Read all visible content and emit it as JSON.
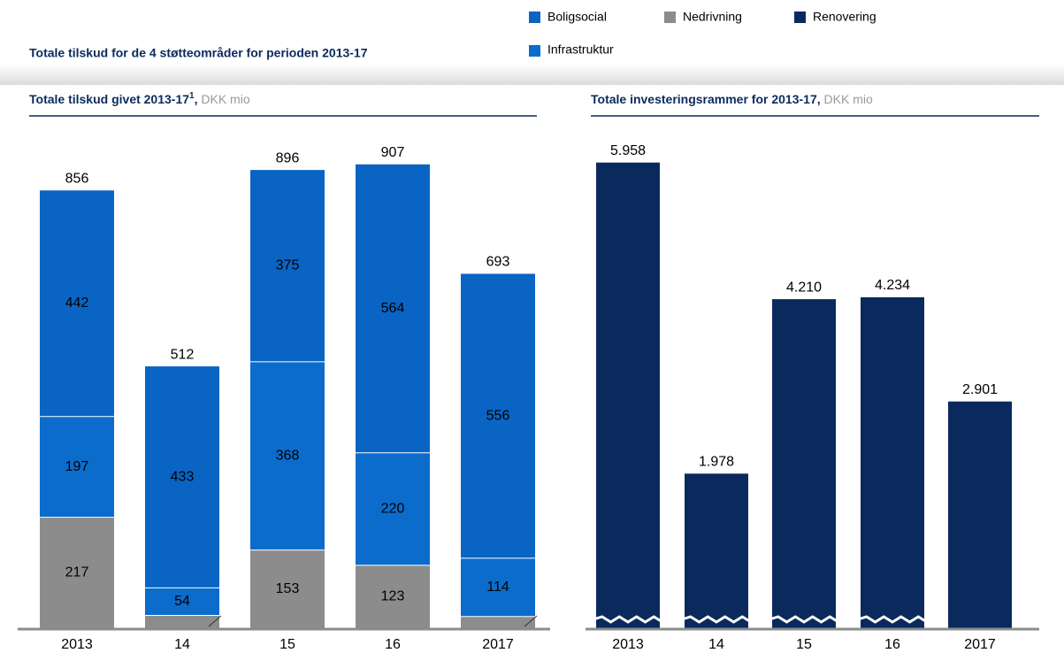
{
  "title": "Totale tilskud for de 4 støtteområder for perioden 2013-17",
  "chart_data": [
    {
      "type": "stacked_bar",
      "title": "Totale tilskud givet 2013-17",
      "title_note": "1",
      "title_sep": ",",
      "unit": "DKK mio",
      "categories": [
        "2013",
        "14",
        "15",
        "16",
        "2017"
      ],
      "series": [
        {
          "name": "Nedrivning",
          "color": "#8c8c8c",
          "values": [
            217,
            25,
            153,
            123,
            23
          ],
          "value_labels": [
            "217",
            null,
            "153",
            "123",
            null
          ]
        },
        {
          "name": "Infrastruktur",
          "color": "#0b6ccc",
          "values": [
            197,
            54,
            368,
            220,
            114
          ],
          "value_labels": [
            "197",
            "54",
            "368",
            "220",
            "114"
          ]
        },
        {
          "name": "Boligsocial",
          "color": "#0a64c4",
          "values": [
            442,
            433,
            375,
            564,
            556
          ],
          "value_labels": [
            "442",
            "433",
            "375",
            "564",
            "556"
          ]
        }
      ],
      "totals": [
        856,
        512,
        896,
        907,
        693
      ],
      "ylim": [
        0,
        1000
      ]
    },
    {
      "type": "bar",
      "title": "Totale investeringsrammer for 2013-17,",
      "unit": "DKK mio",
      "categories": [
        "2013",
        "14",
        "15",
        "16",
        "2017"
      ],
      "series": [
        {
          "name": "Renovering",
          "color": "#0a2a5e",
          "values": [
            5958,
            1978,
            4210,
            4234,
            2901
          ],
          "value_labels": [
            "5.958",
            "1.978",
            "4.210",
            "4.234",
            "2.901"
          ]
        }
      ],
      "ylim": [
        0,
        6000
      ]
    }
  ]
}
